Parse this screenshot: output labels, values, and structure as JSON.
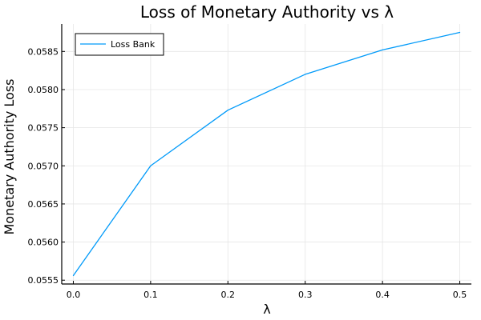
{
  "chart_data": {
    "type": "line",
    "title": "Loss of Monetary Authority vs λ",
    "xlabel": "λ",
    "ylabel": "Monetary Authority Loss",
    "xlim": [
      -0.015,
      0.515
    ],
    "ylim": [
      0.05545,
      0.05886
    ],
    "x_ticks": [
      0.0,
      0.1,
      0.2,
      0.3,
      0.4,
      0.5
    ],
    "x_tick_labels": [
      "0.0",
      "0.1",
      "0.2",
      "0.3",
      "0.4",
      "0.5"
    ],
    "y_ticks": [
      0.0555,
      0.056,
      0.0565,
      0.057,
      0.0575,
      0.058,
      0.0585
    ],
    "y_tick_labels": [
      "0.0555",
      "0.0560",
      "0.0565",
      "0.0570",
      "0.0575",
      "0.0580",
      "0.0585"
    ],
    "grid": true,
    "legend_position": "top-left",
    "series": [
      {
        "name": "Loss Bank",
        "color": "#009af9",
        "x": [
          0.0,
          0.1,
          0.2,
          0.3,
          0.4,
          0.5
        ],
        "y": [
          0.05556,
          0.057,
          0.05773,
          0.0582,
          0.05852,
          0.05875
        ]
      }
    ]
  }
}
